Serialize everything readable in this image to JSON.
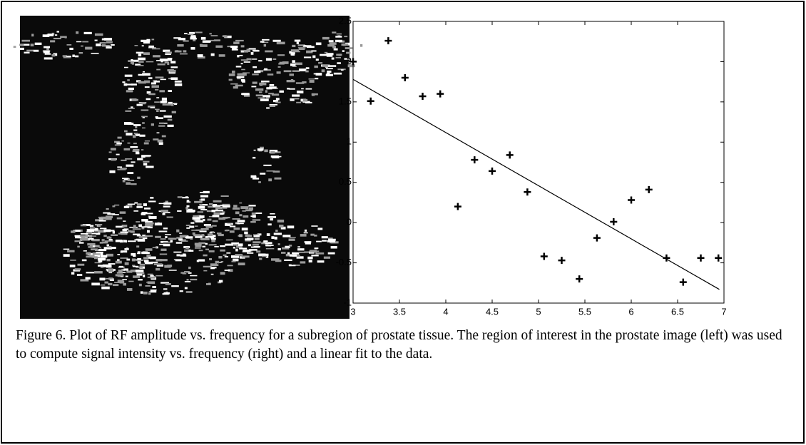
{
  "chart_data": {
    "type": "scatter",
    "x": [
      3,
      3.19,
      3.38,
      3.56,
      3.75,
      3.94,
      4.13,
      4.31,
      4.5,
      4.69,
      4.88,
      5.06,
      5.25,
      5.44,
      5.63,
      5.81,
      6.0,
      6.19,
      6.38,
      6.56,
      6.75,
      6.94
    ],
    "values": [
      2.0,
      1.51,
      2.26,
      1.8,
      1.57,
      1.6,
      0.2,
      0.78,
      0.64,
      0.84,
      0.38,
      -0.42,
      -0.47,
      -0.7,
      -0.19,
      0.01,
      0.28,
      0.41,
      -0.44,
      -0.74,
      -0.44,
      -0.44
    ],
    "color": "#000000",
    "fit": {
      "x": [
        3,
        6.95
      ],
      "y": [
        1.78,
        -0.83
      ]
    },
    "xlim": [
      3,
      7
    ],
    "xticks": [
      3,
      3.5,
      4,
      4.5,
      5,
      5.5,
      6,
      6.5,
      7
    ],
    "ylim": [
      -1,
      2.5
    ],
    "yticks": [
      -1,
      -0.5,
      0,
      0.5,
      1,
      1.5,
      2,
      2.5
    ],
    "grid": false
  },
  "caption": "Figure 6. Plot of RF amplitude vs. frequency for a subregion of prostate tissue.  The region of interest in the prostate image (left) was used to compute signal intensity vs. frequency (right) and a linear fit to the data."
}
